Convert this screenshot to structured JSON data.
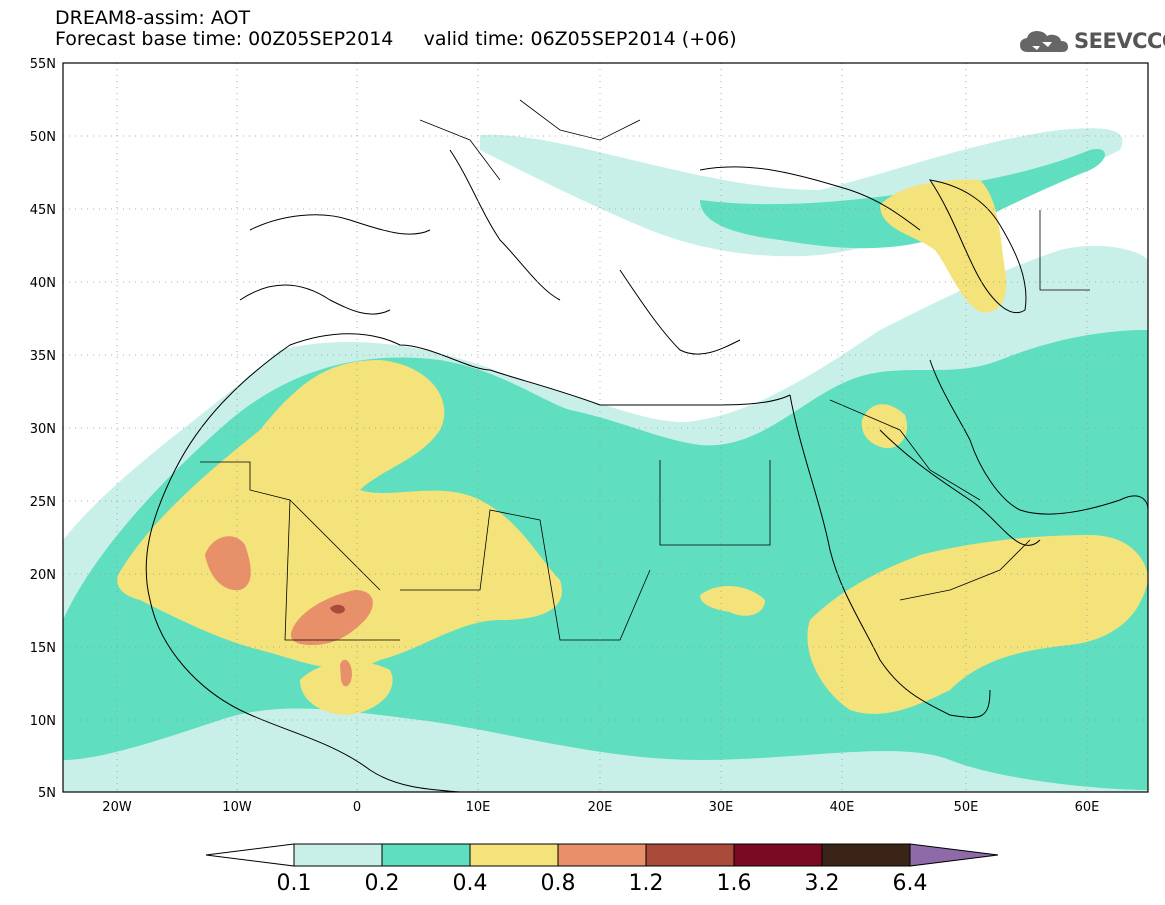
{
  "header": {
    "title_line1": "DREAM8-assim: AOT",
    "title_line2": "Forecast base time: 00Z05SEP2014     valid time: 06Z05SEP2014 (+06)",
    "logo_text": "SEEVCCC",
    "logo_icon": "cloud-icon"
  },
  "map": {
    "lon_ticks": [
      "20W",
      "10W",
      "0",
      "10E",
      "20E",
      "30E",
      "40E",
      "50E",
      "60E"
    ],
    "lat_ticks": [
      "55N",
      "50N",
      "45N",
      "40N",
      "35N",
      "30N",
      "25N",
      "20N",
      "15N",
      "10N",
      "5N"
    ],
    "lon_range": [
      -25,
      65
    ],
    "lat_range": [
      5,
      55
    ],
    "grid": true,
    "variable": "AOT"
  },
  "colorbar": {
    "labels": [
      "0.1",
      "0.2",
      "0.4",
      "0.8",
      "1.2",
      "1.6",
      "3.2",
      "6.4"
    ],
    "colors": [
      "#ffffff",
      "#c8f0e8",
      "#5fdfbf",
      "#f4e27a",
      "#e8906a",
      "#aa4a3a",
      "#7a0a24",
      "#3a2418",
      "#8e6aa8"
    ]
  }
}
